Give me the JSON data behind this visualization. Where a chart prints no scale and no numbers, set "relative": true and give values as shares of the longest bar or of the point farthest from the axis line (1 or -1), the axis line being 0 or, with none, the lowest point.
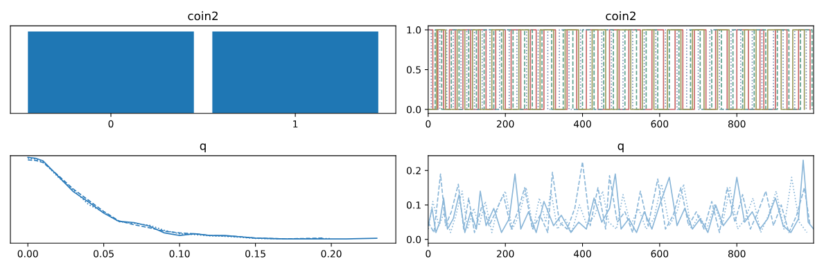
{
  "chart_data": [
    {
      "type": "bar",
      "title": "coin2",
      "categories": [
        "0",
        "1"
      ],
      "values": [
        1,
        1
      ],
      "color": "#1f77b4",
      "relative": true,
      "tick_labels": "x",
      "grid": false
    },
    {
      "type": "step",
      "title": "coin2",
      "xlim": [
        0,
        999
      ],
      "xticks": [
        0,
        200,
        400,
        600,
        800
      ],
      "ylim": [
        -0.05,
        1.05
      ],
      "yticks": [
        {
          "value": 0,
          "label": "0.0"
        },
        {
          "value": 0.5,
          "label": "0.5"
        },
        {
          "value": 1,
          "label": "1.0"
        }
      ],
      "grid": false,
      "series": [
        {
          "color": "#c86464",
          "line_style": "solid",
          "x": [
            0,
            12,
            25,
            40,
            55,
            70,
            90,
            110,
            130,
            150,
            175,
            200,
            215,
            240,
            265,
            280,
            300,
            330,
            360,
            385,
            410,
            440,
            470,
            495,
            520,
            550,
            580,
            610,
            640,
            660,
            690,
            720,
            745,
            775,
            800,
            830,
            860,
            870,
            900,
            930,
            960,
            990
          ],
          "values": [
            1,
            0,
            1,
            0,
            1,
            0,
            1,
            0,
            1,
            0,
            1,
            0,
            1,
            0,
            1,
            0,
            1,
            0,
            1,
            0,
            1,
            0,
            1,
            0,
            1,
            0,
            1,
            0,
            1,
            0,
            1,
            0,
            1,
            0,
            1,
            0,
            1,
            0,
            1,
            0,
            1,
            0
          ]
        },
        {
          "color": "#5a9e8a",
          "line_style": "dashed",
          "x": [
            0,
            18,
            35,
            60,
            80,
            105,
            125,
            145,
            170,
            190,
            220,
            250,
            270,
            295,
            320,
            350,
            375,
            400,
            430,
            455,
            480,
            510,
            540,
            565,
            595,
            625,
            650,
            680,
            705,
            735,
            760,
            790,
            815,
            845,
            875,
            905,
            935,
            965,
            995
          ],
          "values": [
            0,
            1,
            0,
            1,
            0,
            1,
            0,
            1,
            0,
            1,
            0,
            1,
            0,
            1,
            0,
            1,
            0,
            1,
            0,
            1,
            0,
            1,
            0,
            1,
            0,
            1,
            0,
            1,
            0,
            1,
            0,
            1,
            0,
            1,
            0,
            1,
            0,
            1,
            0
          ]
        },
        {
          "color": "#7a8fb5",
          "line_style": "dotted",
          "x": [
            0,
            8,
            30,
            48,
            65,
            85,
            100,
            120,
            140,
            160,
            185,
            210,
            230,
            255,
            285,
            310,
            340,
            365,
            395,
            420,
            450,
            475,
            505,
            530,
            560,
            590,
            615,
            645,
            670,
            700,
            730,
            755,
            785,
            810,
            840,
            865,
            895,
            920,
            950,
            980
          ],
          "values": [
            1,
            0,
            1,
            0,
            1,
            0,
            1,
            0,
            1,
            0,
            1,
            0,
            1,
            0,
            1,
            0,
            1,
            0,
            1,
            0,
            1,
            0,
            1,
            0,
            1,
            0,
            1,
            0,
            1,
            0,
            1,
            0,
            1,
            0,
            1,
            0,
            1,
            0,
            1,
            0
          ]
        },
        {
          "color": "#9a9a5a",
          "line_style": "solid",
          "x": [
            0,
            22,
            45,
            75,
            95,
            115,
            135,
            165,
            195,
            235,
            260,
            290,
            325,
            355,
            390,
            425,
            460,
            490,
            525,
            555,
            585,
            620,
            655,
            685,
            715,
            750,
            780,
            820,
            850,
            880,
            915,
            945,
            975
          ],
          "values": [
            0,
            1,
            0,
            1,
            0,
            1,
            0,
            1,
            0,
            1,
            0,
            1,
            0,
            1,
            0,
            1,
            0,
            1,
            0,
            1,
            0,
            1,
            0,
            1,
            0,
            1,
            0,
            1,
            0,
            1,
            0,
            1,
            0
          ]
        }
      ]
    },
    {
      "type": "line",
      "title": "q",
      "relative": true,
      "tick_labels": "x",
      "xlim": [
        -0.0115,
        0.2425
      ],
      "xticks": [
        {
          "value": 0,
          "label": "0.00"
        },
        {
          "value": 0.05,
          "label": "0.05"
        },
        {
          "value": 0.1,
          "label": "0.10"
        },
        {
          "value": 0.15,
          "label": "0.15"
        },
        {
          "value": 0.2,
          "label": "0.20"
        }
      ],
      "grid": false,
      "series": [
        {
          "color": "#2b7bba",
          "line_style": "solid",
          "x": [
            0,
            0.005,
            0.01,
            0.02,
            0.03,
            0.04,
            0.05,
            0.06,
            0.07,
            0.08,
            0.09,
            0.1,
            0.11,
            0.12,
            0.13,
            0.14,
            0.15,
            0.17,
            0.19,
            0.21,
            0.23
          ],
          "values": [
            1.0,
            0.99,
            0.96,
            0.78,
            0.6,
            0.48,
            0.35,
            0.255,
            0.24,
            0.2,
            0.12,
            0.09,
            0.11,
            0.09,
            0.09,
            0.075,
            0.06,
            0.05,
            0.05,
            0.05,
            0.057
          ]
        },
        {
          "color": "#2b7bba",
          "line_style": "dashed",
          "x": [
            0,
            0.005,
            0.01,
            0.02,
            0.03,
            0.04,
            0.05,
            0.06,
            0.07,
            0.08,
            0.09,
            0.1,
            0.11,
            0.12,
            0.13,
            0.14,
            0.15,
            0.17,
            0.195
          ],
          "values": [
            0.97,
            0.965,
            0.94,
            0.79,
            0.63,
            0.5,
            0.37,
            0.26,
            0.215,
            0.18,
            0.14,
            0.12,
            0.11,
            0.09,
            0.085,
            0.075,
            0.06,
            0.05,
            0.06
          ]
        },
        {
          "color": "#2b7bba",
          "line_style": "dotted",
          "x": [
            0,
            0.005,
            0.01,
            0.02,
            0.03,
            0.04,
            0.05,
            0.06,
            0.07,
            0.08,
            0.09,
            0.1,
            0.11,
            0.12,
            0.13,
            0.14,
            0.15,
            0.17,
            0.2
          ],
          "values": [
            0.99,
            0.98,
            0.95,
            0.77,
            0.62,
            0.45,
            0.36,
            0.25,
            0.23,
            0.21,
            0.15,
            0.11,
            0.1,
            0.085,
            0.08,
            0.07,
            0.055,
            0.05,
            0.055
          ]
        }
      ]
    },
    {
      "type": "line",
      "title": "q",
      "xlim": [
        0,
        999
      ],
      "xticks": [
        0,
        200,
        400,
        600,
        800
      ],
      "ylim": [
        -0.011,
        0.243
      ],
      "yticks": [
        {
          "value": 0,
          "label": "0.0"
        },
        {
          "value": 0.1,
          "label": "0.1"
        },
        {
          "value": 0.2,
          "label": "0.2"
        }
      ],
      "grid": false,
      "series": [
        {
          "color": "#8ab6d8",
          "line_style": "solid",
          "x": [
            0,
            10,
            20,
            30,
            40,
            50,
            65,
            80,
            95,
            110,
            125,
            135,
            150,
            170,
            190,
            210,
            225,
            240,
            260,
            280,
            300,
            325,
            345,
            370,
            390,
            410,
            430,
            450,
            470,
            485,
            500,
            520,
            540,
            560,
            580,
            600,
            625,
            645,
            665,
            685,
            705,
            725,
            745,
            765,
            785,
            800,
            820,
            840,
            860,
            880,
            900,
            920,
            940,
            960,
            972,
            985,
            999
          ],
          "values": [
            0.04,
            0.09,
            0.02,
            0.05,
            0.12,
            0.03,
            0.06,
            0.13,
            0.02,
            0.08,
            0.03,
            0.14,
            0.04,
            0.09,
            0.02,
            0.06,
            0.19,
            0.03,
            0.08,
            0.02,
            0.11,
            0.04,
            0.07,
            0.02,
            0.05,
            0.03,
            0.12,
            0.05,
            0.09,
            0.19,
            0.03,
            0.06,
            0.02,
            0.08,
            0.03,
            0.1,
            0.18,
            0.04,
            0.09,
            0.03,
            0.06,
            0.02,
            0.1,
            0.04,
            0.07,
            0.18,
            0.05,
            0.08,
            0.03,
            0.06,
            0.12,
            0.04,
            0.02,
            0.06,
            0.23,
            0.05,
            0.03
          ]
        },
        {
          "color": "#8ab6d8",
          "line_style": "dashed",
          "x": [
            0,
            15,
            32,
            45,
            60,
            78,
            92,
            105,
            120,
            140,
            158,
            175,
            195,
            215,
            232,
            250,
            270,
            290,
            310,
            322,
            340,
            360,
            380,
            400,
            420,
            440,
            460,
            470,
            490,
            510,
            530,
            550,
            570,
            595,
            615,
            635,
            655,
            675,
            695,
            715,
            735,
            755,
            775,
            795,
            815,
            835,
            855,
            875,
            895,
            915,
            935,
            955,
            975,
            990
          ],
          "values": [
            0.05,
            0.02,
            0.19,
            0.04,
            0.08,
            0.16,
            0.03,
            0.12,
            0.02,
            0.1,
            0.04,
            0.08,
            0.13,
            0.03,
            0.08,
            0.15,
            0.03,
            0.07,
            0.02,
            0.195,
            0.05,
            0.03,
            0.09,
            0.225,
            0.04,
            0.15,
            0.03,
            0.185,
            0.05,
            0.08,
            0.02,
            0.14,
            0.04,
            0.175,
            0.03,
            0.07,
            0.15,
            0.04,
            0.08,
            0.03,
            0.11,
            0.02,
            0.15,
            0.05,
            0.13,
            0.03,
            0.08,
            0.14,
            0.04,
            0.1,
            0.02,
            0.07,
            0.15,
            0.04
          ]
        },
        {
          "color": "#8ab6d8",
          "line_style": "dotted",
          "x": [
            0,
            12,
            28,
            42,
            58,
            72,
            88,
            102,
            118,
            132,
            148,
            165,
            182,
            200,
            218,
            236,
            254,
            272,
            288,
            305,
            318,
            335,
            355,
            372,
            392,
            412,
            432,
            452,
            468,
            488,
            505,
            525,
            545,
            565,
            585,
            605,
            625,
            645,
            662,
            682,
            702,
            722,
            742,
            762,
            782,
            802,
            822,
            842,
            862,
            882,
            902,
            922,
            942,
            962,
            982
          ],
          "values": [
            0.03,
            0.11,
            0.04,
            0.08,
            0.02,
            0.07,
            0.14,
            0.03,
            0.09,
            0.04,
            0.11,
            0.02,
            0.1,
            0.14,
            0.03,
            0.07,
            0.15,
            0.03,
            0.12,
            0.05,
            0.14,
            0.03,
            0.06,
            0.02,
            0.1,
            0.04,
            0.07,
            0.14,
            0.05,
            0.03,
            0.13,
            0.04,
            0.09,
            0.03,
            0.06,
            0.16,
            0.04,
            0.08,
            0.16,
            0.03,
            0.07,
            0.03,
            0.1,
            0.04,
            0.15,
            0.03,
            0.06,
            0.12,
            0.02,
            0.07,
            0.14,
            0.03,
            0.18,
            0.05,
            0.02
          ]
        }
      ]
    }
  ]
}
